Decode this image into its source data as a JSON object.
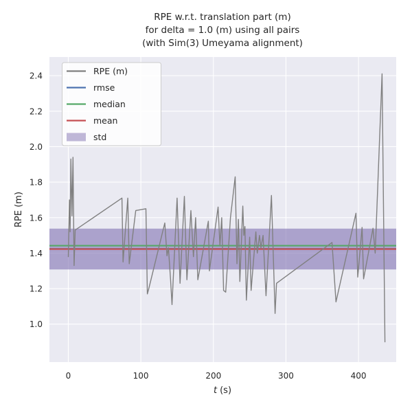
{
  "title": {
    "line1": "RPE w.r.t. translation part (m)",
    "line2": "for delta = 1.0 (m) using all pairs",
    "line3": "(with Sim(3) Umeyama alignment)"
  },
  "axes": {
    "ylabel": "RPE (m)",
    "xlabel_var": "t",
    "xlabel_unit": "(s)"
  },
  "ticks": {
    "x_labels": [
      "0",
      "100",
      "200",
      "300",
      "400"
    ],
    "y_labels": [
      "1.0",
      "1.2",
      "1.4",
      "1.6",
      "1.8",
      "2.0",
      "2.2",
      "2.4"
    ]
  },
  "legend": {
    "items": [
      {
        "label": "RPE (m)",
        "swatch": "line",
        "color": "#808080"
      },
      {
        "label": "rmse",
        "swatch": "line",
        "color": "#4c72b0"
      },
      {
        "label": "median",
        "swatch": "line",
        "color": "#55a868"
      },
      {
        "label": "mean",
        "swatch": "line",
        "color": "#c44e52"
      },
      {
        "label": "std",
        "swatch": "patch",
        "color": "#8172b2",
        "alpha": 0.5
      }
    ]
  },
  "colors": {
    "figure_bg": "#ffffff",
    "axes_bg": "#eaeaf2",
    "grid": "#ffffff",
    "text": "#262626",
    "rpe_line": "#808080",
    "rmse_line": "#4c72b0",
    "median_line": "#55a868",
    "mean_line": "#c44e52",
    "std_fill": "#8172b2"
  },
  "chart_data": {
    "type": "line",
    "title": "RPE w.r.t. translation part (m) for delta = 1.0 (m) using all pairs (with Sim(3) Umeyama alignment)",
    "xlabel": "t (s)",
    "ylabel": "RPE (m)",
    "xlim": [
      -26,
      452
    ],
    "ylim": [
      0.786,
      2.505
    ],
    "xticks": [
      0,
      100,
      200,
      300,
      400
    ],
    "yticks": [
      1.0,
      1.2,
      1.4,
      1.6,
      1.8,
      2.0,
      2.2,
      2.4
    ],
    "grid": true,
    "legend_position": "upper left",
    "series": [
      {
        "name": "RPE (m)",
        "color": "#808080",
        "t": [
          0,
          1.5,
          2.5,
          3.5,
          5,
          6.5,
          8,
          9.5,
          74,
          75.5,
          82,
          84,
          93,
          107,
          109,
          111,
          133,
          136,
          138,
          141,
          143,
          150,
          154,
          160,
          163.5,
          169,
          172.5,
          175.5,
          178.5,
          193,
          194.5,
          206.5,
          209,
          211.5,
          214,
          217,
          223.5,
          230,
          232.5,
          234.5,
          236.5,
          240.5,
          242,
          243.5,
          245.5,
          250,
          252,
          258.5,
          260.5,
          263.5,
          265.5,
          268.5,
          272.5,
          280,
          285,
          287,
          363.5,
          369,
          396.5,
          399,
          405,
          407,
          420,
          423,
          432.5,
          436.5
        ],
        "values": [
          1.38,
          1.7,
          1.52,
          1.93,
          1.61,
          1.94,
          1.33,
          1.53,
          1.71,
          1.35,
          1.71,
          1.34,
          1.64,
          1.65,
          1.17,
          1.2,
          1.57,
          1.385,
          1.43,
          1.25,
          1.11,
          1.71,
          1.23,
          1.72,
          1.25,
          1.64,
          1.38,
          1.6,
          1.25,
          1.58,
          1.3,
          1.66,
          1.44,
          1.6,
          1.19,
          1.18,
          1.6,
          1.83,
          1.34,
          1.59,
          1.24,
          1.665,
          1.5,
          1.55,
          1.135,
          1.49,
          1.19,
          1.52,
          1.4,
          1.5,
          1.43,
          1.5,
          1.16,
          1.725,
          1.06,
          1.23,
          1.46,
          1.125,
          1.625,
          1.265,
          1.545,
          1.255,
          1.54,
          1.4,
          2.41,
          0.9
        ]
      }
    ],
    "stats": {
      "rmse": {
        "label": "rmse",
        "value": 1.424,
        "color": "#4c72b0"
      },
      "median": {
        "label": "median",
        "value": 1.442,
        "color": "#55a868"
      },
      "mean": {
        "label": "mean",
        "value": 1.423,
        "color": "#c44e52"
      },
      "std": {
        "label": "std",
        "band_low": 1.308,
        "band_high": 1.538,
        "color": "#8172b2",
        "alpha": 0.6
      }
    }
  }
}
